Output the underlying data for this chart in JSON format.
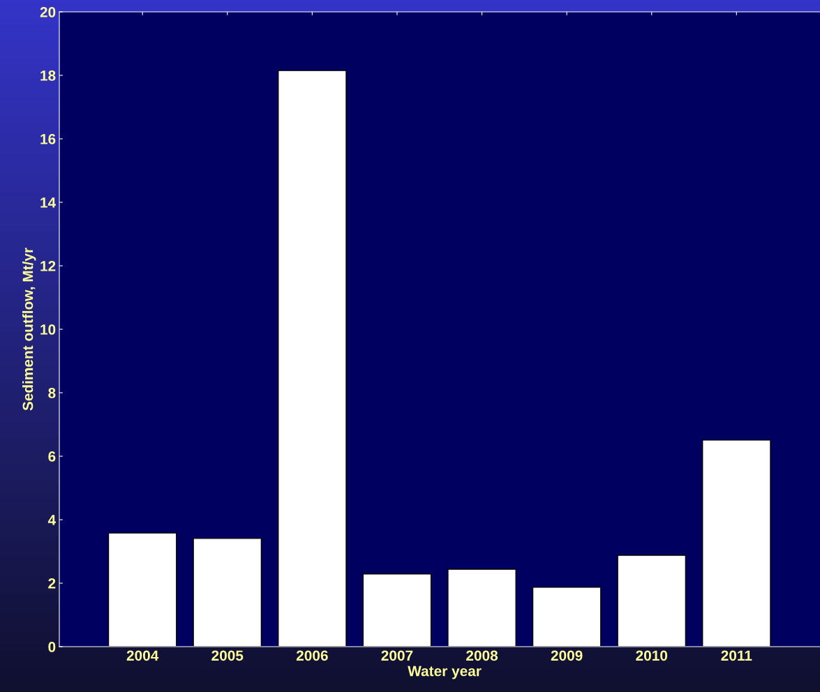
{
  "chart_data": {
    "type": "bar",
    "xlabel": "Water year",
    "ylabel": "Sediment outflow, Mt/yr",
    "categories": [
      "2004",
      "2005",
      "2006",
      "2007",
      "2008",
      "2009",
      "2010",
      "2011"
    ],
    "values": [
      3.58,
      3.41,
      18.15,
      2.29,
      2.44,
      1.87,
      2.88,
      6.51
    ],
    "color": "#ffffff",
    "ylim": [
      0,
      20
    ],
    "yticks": [
      0,
      2,
      4,
      6,
      8,
      10,
      12,
      14,
      16,
      18,
      20
    ],
    "grid": false,
    "legend": false
  }
}
